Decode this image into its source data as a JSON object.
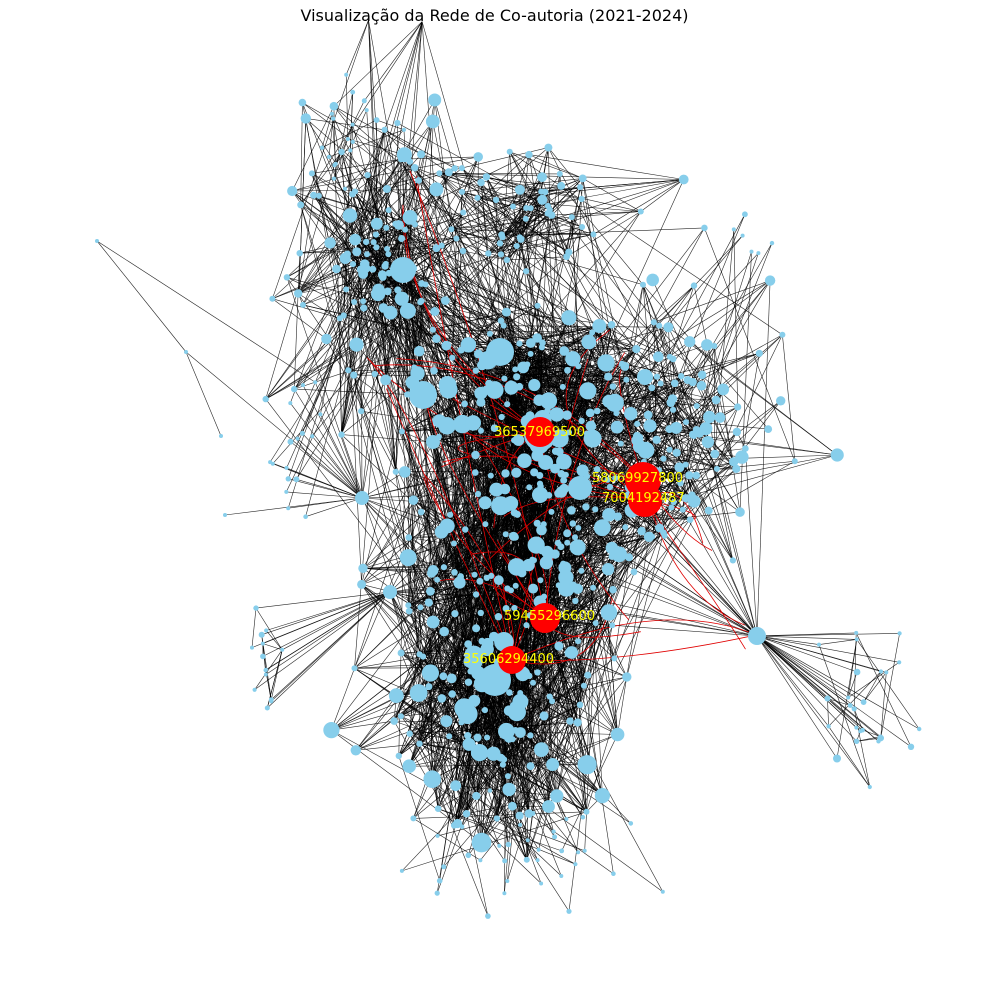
{
  "title": "Visualização da Rede de Co-autoria (2021-2024)",
  "colors": {
    "node": "#87ceeb",
    "hub": "#ff0000",
    "edge": "#000000",
    "highlight_edge": "#e00000",
    "label": "#ffff00"
  },
  "hubs": [
    {
      "label": "36537969500"
    },
    {
      "label": "58069927800"
    },
    {
      "label": "7004192487"
    },
    {
      "label": "59455296600"
    },
    {
      "label": "35606294400"
    }
  ]
}
